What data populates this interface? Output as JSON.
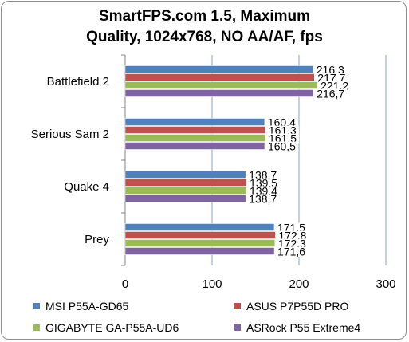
{
  "chart_data": {
    "type": "bar",
    "orientation": "horizontal",
    "title_line1": "SmartFPS.com 1.5, Maximum",
    "title_line2": "Quality, 1024x768, NO AA/AF, fps",
    "categories": [
      "Battlefield 2",
      "Serious Sam 2",
      "Quake 4",
      "Prey"
    ],
    "series": [
      {
        "name": "MSI P55A-GD65",
        "color": "#4f81bd",
        "values": [
          216.3,
          160.4,
          138.7,
          171.5
        ],
        "labels": [
          "216,3",
          "160,4",
          "138,7",
          "171,5"
        ]
      },
      {
        "name": "ASUS P7P55D PRO",
        "color": "#c0504d",
        "values": [
          217.7,
          161.3,
          139.5,
          172.8
        ],
        "labels": [
          "217,7",
          "161,3",
          "139,5",
          "172,8"
        ]
      },
      {
        "name": "GIGABYTE GA-P55A-UD6",
        "color": "#9bbb59",
        "values": [
          221.2,
          161.5,
          139.4,
          172.3
        ],
        "labels": [
          "221,2",
          "161,5",
          "139,4",
          "172,3"
        ]
      },
      {
        "name": "ASRock P55 Extreme4",
        "color": "#8064a2",
        "values": [
          216.7,
          160.5,
          138.7,
          171.6
        ],
        "labels": [
          "216,7",
          "160,5",
          "138,7",
          "171,6"
        ]
      }
    ],
    "xlim": [
      0,
      300
    ],
    "xticks": [
      "0",
      "100",
      "200",
      "300"
    ],
    "grid": true,
    "legend_position": "bottom"
  }
}
